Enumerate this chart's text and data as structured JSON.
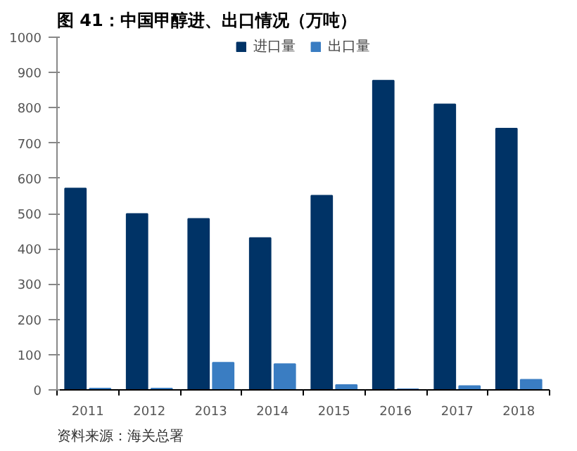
{
  "chart_data": {
    "type": "bar",
    "title": "图 41：中国甲醇进、出口情况（万吨）",
    "categories": [
      "2011",
      "2012",
      "2013",
      "2014",
      "2015",
      "2016",
      "2017",
      "2018"
    ],
    "series": [
      {
        "name": "进口量",
        "color": "#003366",
        "values": [
          571,
          499,
          485,
          431,
          551,
          877,
          810,
          741
        ]
      },
      {
        "name": "出口量",
        "color": "#3a7dc2",
        "values": [
          4,
          4,
          77,
          73,
          14,
          2,
          11,
          29
        ]
      }
    ],
    "ylim": [
      0,
      1000
    ],
    "yticks": [
      0,
      100,
      200,
      300,
      400,
      500,
      600,
      700,
      800,
      900,
      1000
    ],
    "grid": false,
    "legend": "top",
    "annotations": [
      "资料来源：海关总署"
    ]
  }
}
